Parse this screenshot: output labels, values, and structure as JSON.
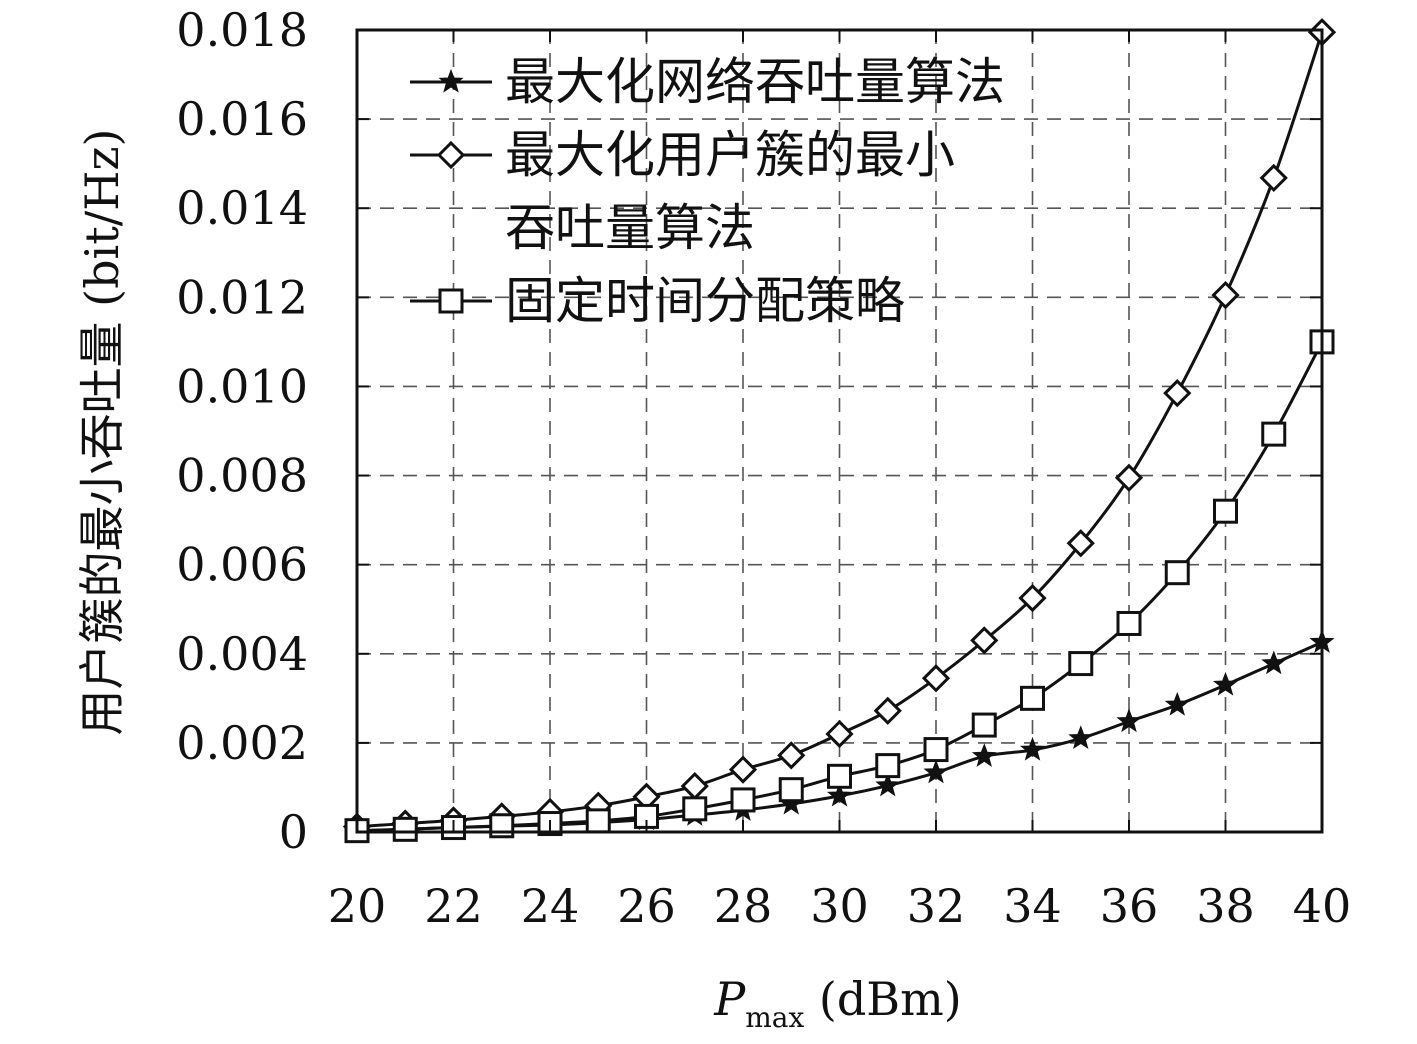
{
  "chart_data": {
    "type": "line",
    "xlabel_main": "P",
    "xlabel_sub": "max",
    "xlabel_unit": " (dBm)",
    "ylabel": "用户簇的最小吞吐量 (bit/Hz)",
    "xlim": [
      20,
      40
    ],
    "ylim": [
      0,
      0.018
    ],
    "xticks": [
      20,
      22,
      24,
      26,
      28,
      30,
      32,
      34,
      36,
      38,
      40
    ],
    "xtick_labels": [
      "20",
      "22",
      "24",
      "26",
      "28",
      "30",
      "32",
      "34",
      "36",
      "38",
      "40"
    ],
    "yticks": [
      0,
      0.002,
      0.004,
      0.006,
      0.008,
      0.01,
      0.012,
      0.014,
      0.016,
      0.018
    ],
    "ytick_labels": [
      "0",
      "0.002",
      "0.004",
      "0.006",
      "0.008",
      "0.010",
      "0.012",
      "0.014",
      "0.016",
      "0.018"
    ],
    "grid": true,
    "legend_position": "top-left",
    "x": [
      20,
      21,
      22,
      23,
      24,
      25,
      26,
      27,
      28,
      29,
      30,
      31,
      32,
      33,
      34,
      35,
      36,
      37,
      38,
      39,
      40
    ],
    "series": [
      {
        "name": "最大化网络吞吐量算法",
        "legend_lines": [
          "最大化网络吞吐量算法"
        ],
        "marker": "star",
        "values": [
          3e-05,
          6e-05,
          0.0001,
          0.00013,
          0.00016,
          0.00021,
          0.00028,
          0.00038,
          0.00049,
          0.00063,
          0.00081,
          0.00104,
          0.00133,
          0.0017,
          0.00184,
          0.0021,
          0.00248,
          0.00285,
          0.0033,
          0.00378,
          0.00426
        ]
      },
      {
        "name": "最大化用户簇的最小吞吐量算法",
        "legend_lines": [
          "最大化用户簇的最小",
          "吞吐量算法"
        ],
        "marker": "diamond",
        "values": [
          0.00012,
          0.00019,
          0.00026,
          0.00035,
          0.00045,
          0.00059,
          0.00079,
          0.00103,
          0.0014,
          0.00172,
          0.0022,
          0.00272,
          0.00345,
          0.0043,
          0.00525,
          0.00648,
          0.00795,
          0.00985,
          0.01205,
          0.01468,
          0.01795
        ]
      },
      {
        "name": "固定时间分配策略",
        "legend_lines": [
          "固定时间分配策略"
        ],
        "marker": "square",
        "values": [
          3e-05,
          6e-05,
          0.0001,
          0.00014,
          0.00019,
          0.00025,
          0.00035,
          0.00052,
          0.00072,
          0.00095,
          0.00125,
          0.00149,
          0.00185,
          0.0024,
          0.003,
          0.00378,
          0.00468,
          0.00582,
          0.0072,
          0.00893,
          0.011
        ]
      }
    ]
  }
}
